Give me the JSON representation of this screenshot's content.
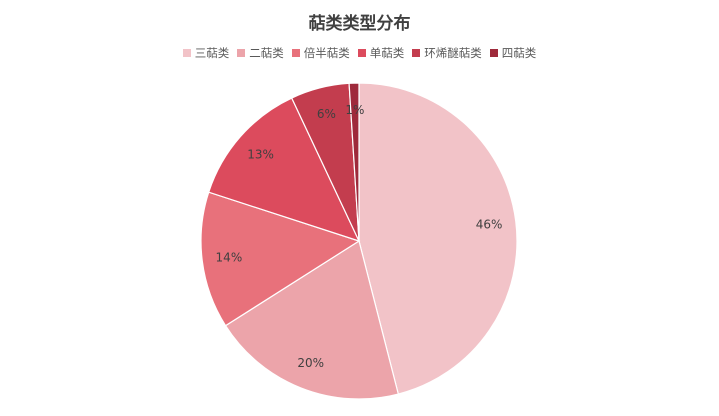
{
  "chart_data": {
    "type": "pie",
    "title": "萜类类型分布",
    "categories": [
      "三萜类",
      "二萜类",
      "倍半萜类",
      "单萜类",
      "环烯醚萜类",
      "四萜类"
    ],
    "values": [
      46,
      20,
      14,
      13,
      6,
      1
    ],
    "labels": [
      "46%",
      "20%",
      "14%",
      "13%",
      "6%",
      "1%"
    ],
    "colors": [
      "#f2c3c8",
      "#eca4aa",
      "#e8717b",
      "#dc4b5d",
      "#c33d4e",
      "#9e2a3b"
    ],
    "legend_position": "top",
    "start_angle_deg": 0,
    "direction": "clockwise"
  }
}
